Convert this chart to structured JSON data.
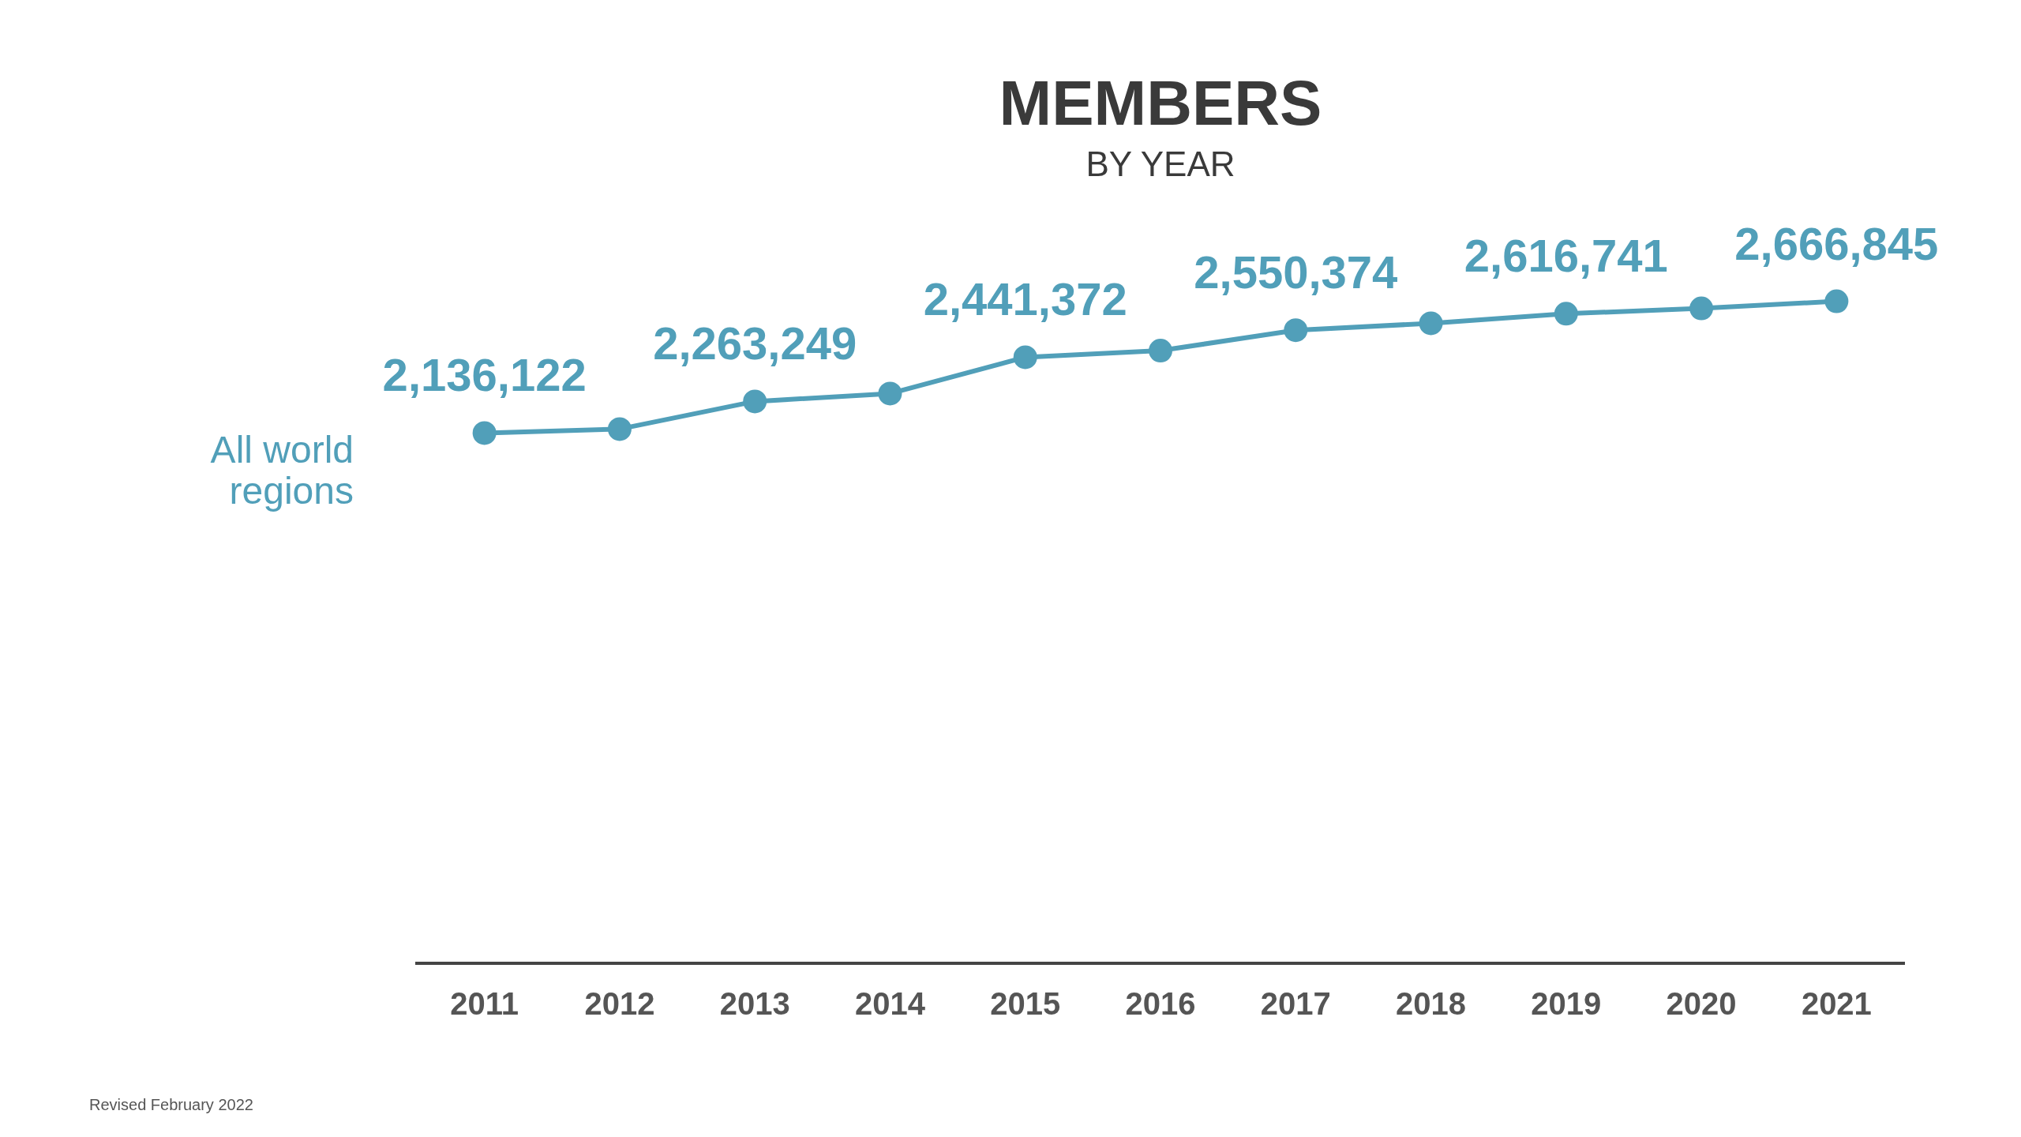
{
  "chart_data": {
    "type": "line",
    "title": "MEMBERS",
    "subtitle": "BY YEAR",
    "categories": [
      "2011",
      "2012",
      "2013",
      "2014",
      "2015",
      "2016",
      "2017",
      "2018",
      "2019",
      "2020",
      "2021"
    ],
    "series": [
      {
        "name": "All world regions",
        "color": "#519fb9",
        "values": [
          2136122,
          2152000,
          2263249,
          2295000,
          2441372,
          2468000,
          2550374,
          2578000,
          2616741,
          2638000,
          2666845
        ],
        "value_labels": [
          "2,136,122",
          null,
          "2,263,249",
          null,
          "2,441,372",
          null,
          "2,550,374",
          null,
          "2,616,741",
          null,
          "2,666,845"
        ]
      }
    ],
    "marker": "circle",
    "legend": false,
    "grid": false,
    "tick_labels": "x",
    "annotations": [
      "Revised February 2022"
    ]
  }
}
